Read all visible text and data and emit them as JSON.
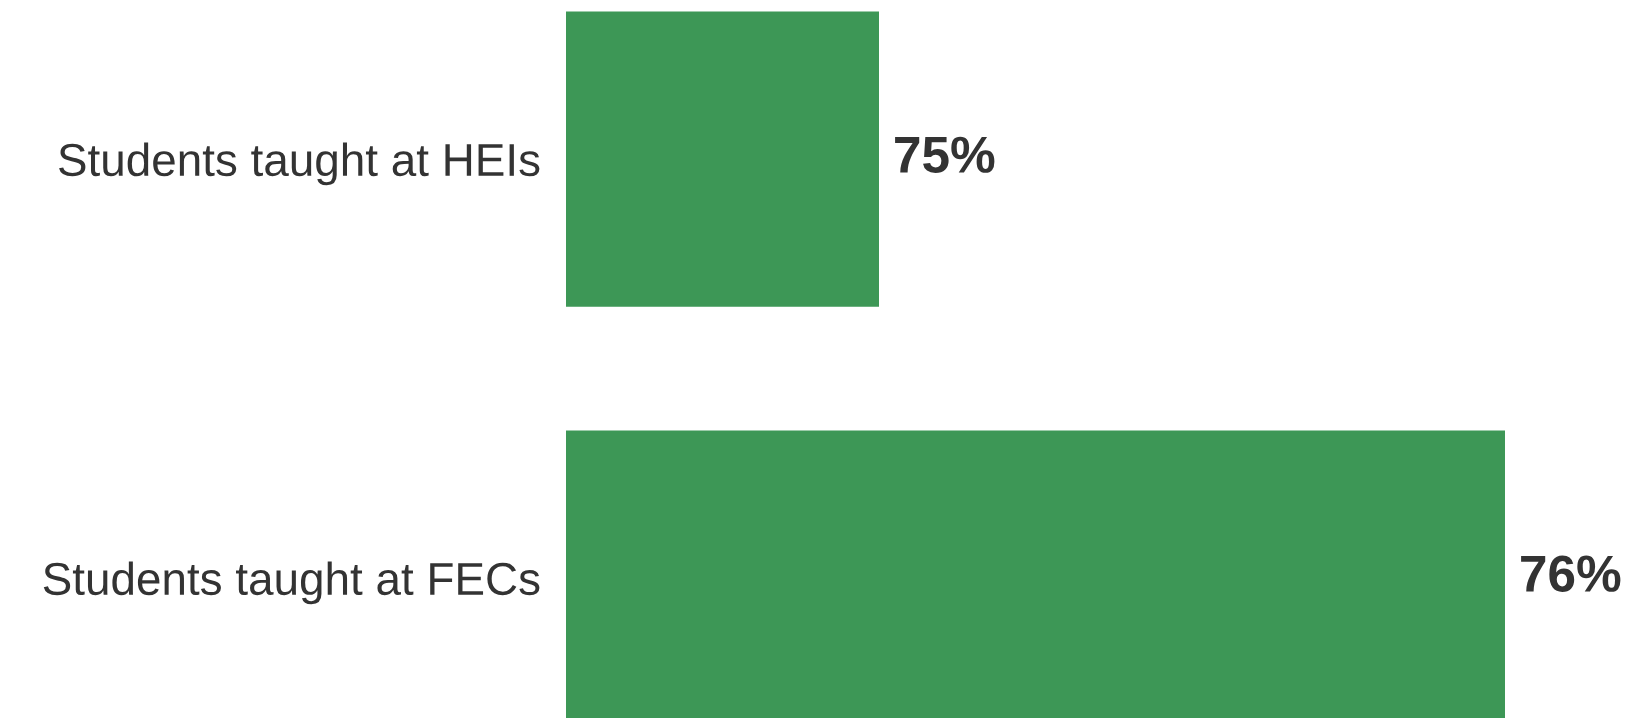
{
  "chart_data": {
    "type": "bar",
    "orientation": "horizontal",
    "xlim": [
      74.5,
      76
    ],
    "categories": [
      "Students taught at HEIs",
      "Students taught at FECs"
    ],
    "values": [
      75,
      76
    ],
    "value_labels": [
      "75%",
      "76%"
    ],
    "color": "#3d9756",
    "tick_labels": "y"
  }
}
